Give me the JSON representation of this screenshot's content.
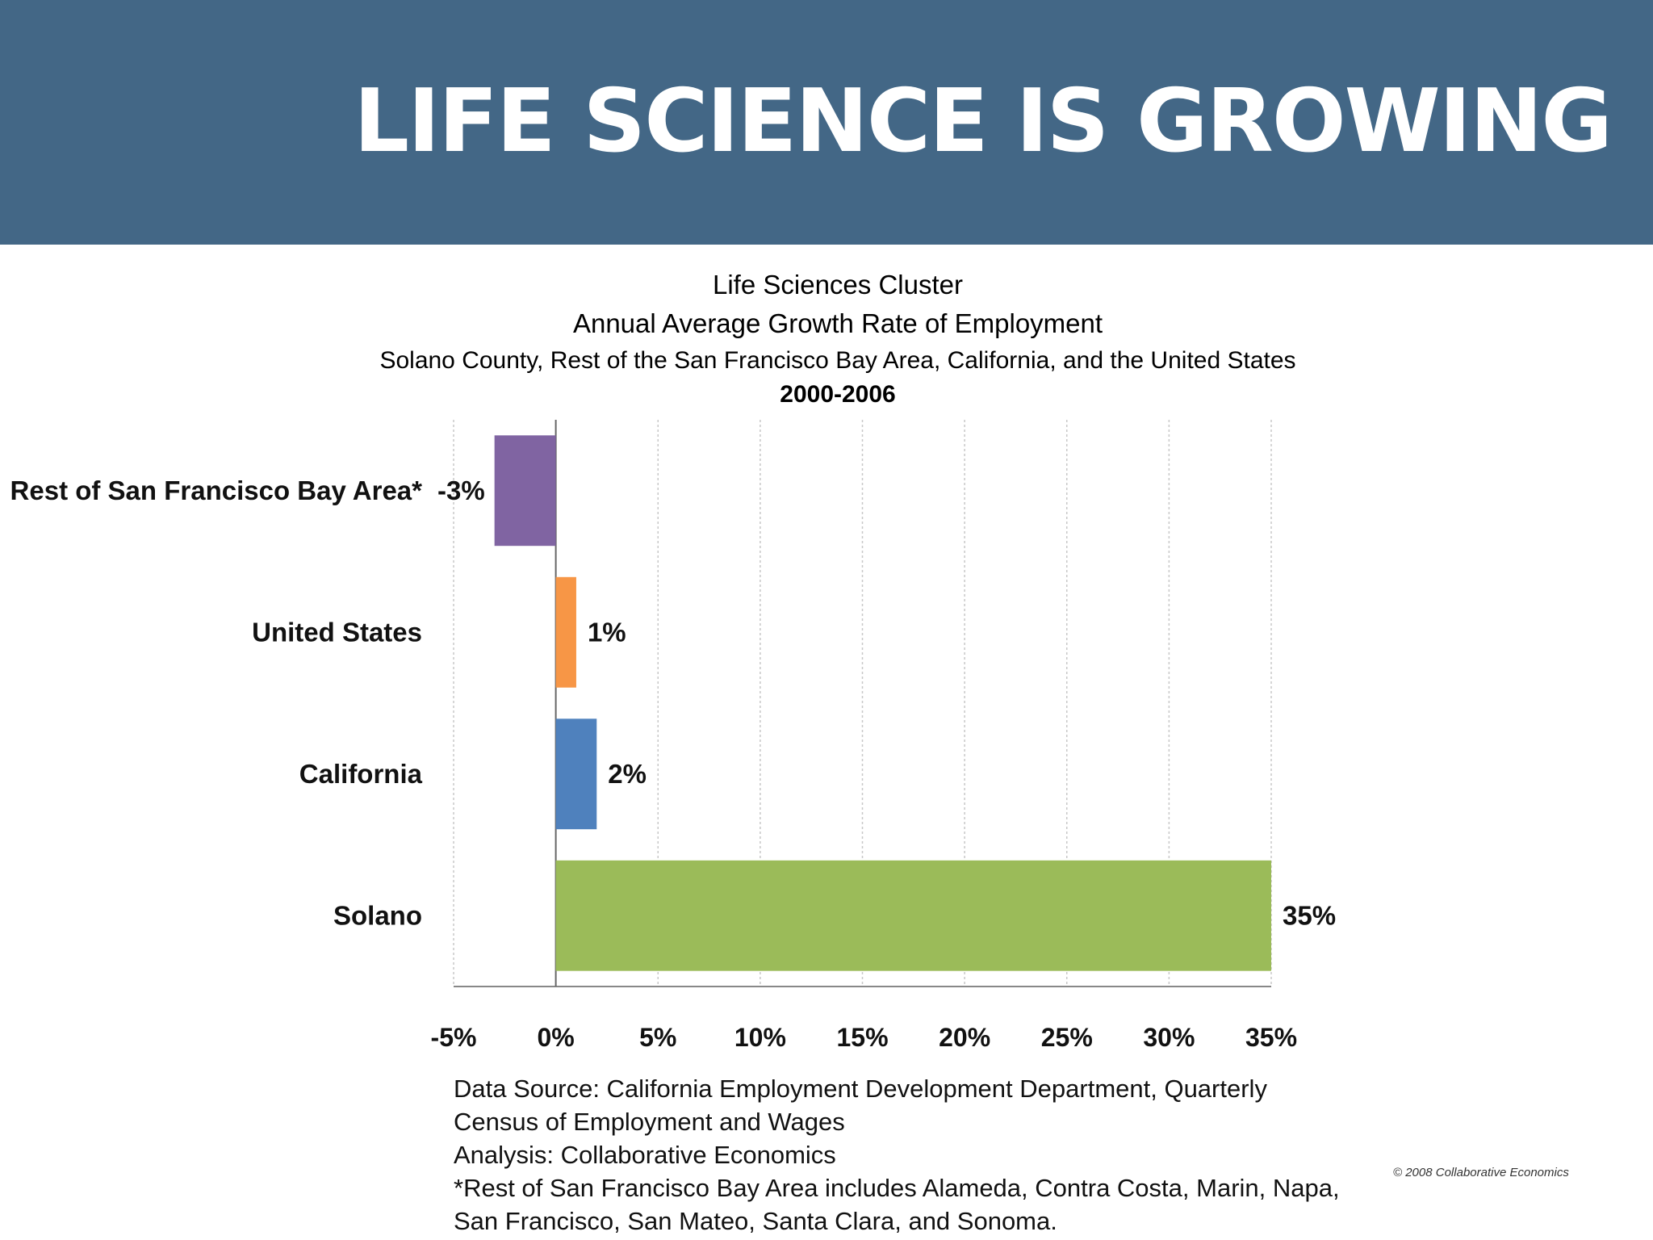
{
  "slide": {
    "title": "LIFE SCIENCE IS GROWING",
    "banner_color": "#436786"
  },
  "chart_data": {
    "type": "bar",
    "orientation": "horizontal",
    "title": "Life Sciences Cluster",
    "subtitle": "Annual Average Growth Rate of Employment",
    "subtitle2": "Solano County, Rest of the San Francisco Bay Area, California, and the United States",
    "period": "2000-2006",
    "categories": [
      "Rest of San Francisco Bay Area*",
      "United States",
      "California",
      "Solano"
    ],
    "values": [
      -3,
      1,
      2,
      35
    ],
    "data_labels": [
      "-3%",
      "1%",
      "2%",
      "35%"
    ],
    "colors": [
      "#8064a2",
      "#f79646",
      "#4f81bd",
      "#9bbb59"
    ],
    "xlim": [
      -5,
      35
    ],
    "xticks": [
      -5,
      0,
      5,
      10,
      15,
      20,
      25,
      30,
      35
    ],
    "xtick_labels": [
      "-5%",
      "0%",
      "5%",
      "10%",
      "15%",
      "20%",
      "25%",
      "30%",
      "35%"
    ],
    "grid": true,
    "legend": "none"
  },
  "notes": {
    "line1": "Data Source: California Employment Development Department, Quarterly",
    "line2": "Census of Employment and Wages",
    "line3": "Analysis: Collaborative Economics",
    "line4": "*Rest of San Francisco Bay Area includes Alameda, Contra Costa, Marin, Napa,",
    "line5": "San Francisco, San Mateo, Santa Clara, and Sonoma."
  },
  "copyright": "© 2008 Collaborative Economics"
}
